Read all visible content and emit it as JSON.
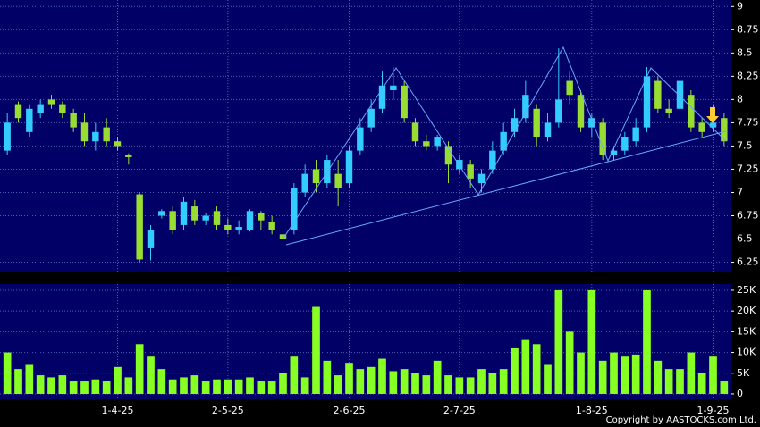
{
  "chart_data": [
    {
      "type": "candlestick",
      "up_color": "#33ccff",
      "down_color": "#99dd33",
      "ylim": [
        6.14,
        9.07
      ],
      "yticks": [
        6.25,
        6.5,
        6.75,
        7,
        7.25,
        7.5,
        7.75,
        8,
        8.25,
        8.5,
        8.75,
        9
      ],
      "grid": true,
      "open": [
        7.45,
        7.95,
        7.65,
        7.85,
        8.0,
        7.95,
        7.85,
        7.75,
        7.55,
        7.7,
        7.55,
        7.4,
        6.98,
        6.4,
        6.75,
        6.8,
        6.65,
        6.85,
        6.7,
        6.8,
        6.65,
        6.6,
        6.6,
        6.78,
        6.68,
        6.55,
        6.6,
        7.0,
        7.25,
        7.1,
        7.2,
        7.1,
        7.45,
        7.7,
        7.9,
        8.1,
        8.15,
        7.75,
        7.55,
        7.5,
        7.5,
        7.25,
        7.3,
        7.1,
        7.25,
        7.45,
        7.65,
        7.8,
        7.9,
        7.6,
        7.75,
        8.2,
        8.05,
        7.7,
        7.75,
        7.4,
        7.45,
        7.55,
        7.7,
        8.2,
        7.9,
        7.9,
        8.05,
        7.75,
        7.7,
        7.8
      ],
      "high": [
        7.85,
        7.98,
        7.95,
        8.0,
        8.05,
        7.98,
        7.9,
        7.85,
        7.75,
        7.8,
        7.6,
        7.42,
        7.0,
        6.65,
        6.82,
        6.85,
        6.95,
        6.92,
        6.78,
        6.85,
        6.72,
        6.7,
        6.82,
        6.8,
        6.75,
        6.6,
        7.1,
        7.3,
        7.35,
        7.4,
        7.35,
        7.5,
        7.8,
        8.0,
        8.3,
        8.35,
        8.2,
        7.8,
        7.62,
        7.62,
        7.55,
        7.4,
        7.35,
        7.25,
        7.55,
        7.75,
        7.9,
        8.2,
        7.95,
        7.85,
        8.55,
        8.3,
        8.1,
        7.85,
        7.8,
        7.5,
        7.65,
        7.8,
        8.35,
        8.25,
        8.0,
        8.25,
        8.1,
        7.8,
        7.95,
        7.85
      ],
      "low": [
        7.4,
        7.75,
        7.6,
        7.8,
        7.9,
        7.8,
        7.65,
        7.5,
        7.45,
        7.5,
        7.45,
        7.3,
        6.25,
        6.27,
        6.72,
        6.55,
        6.6,
        6.65,
        6.65,
        6.6,
        6.55,
        6.55,
        6.58,
        6.6,
        6.55,
        6.45,
        6.55,
        6.95,
        7.0,
        7.05,
        6.85,
        7.05,
        7.4,
        7.65,
        7.85,
        8.0,
        7.75,
        7.5,
        7.45,
        7.45,
        7.1,
        7.2,
        7.05,
        7.0,
        7.2,
        7.4,
        7.6,
        7.75,
        7.5,
        7.55,
        7.7,
        7.95,
        7.65,
        7.6,
        7.35,
        7.35,
        7.4,
        7.5,
        7.65,
        7.85,
        7.8,
        7.85,
        7.65,
        7.6,
        7.65,
        7.5
      ],
      "close": [
        7.75,
        7.8,
        7.9,
        7.95,
        7.95,
        7.85,
        7.7,
        7.55,
        7.65,
        7.55,
        7.5,
        7.38,
        6.28,
        6.6,
        6.8,
        6.6,
        6.9,
        6.7,
        6.75,
        6.65,
        6.6,
        6.63,
        6.8,
        6.7,
        6.6,
        6.5,
        7.05,
        7.2,
        7.1,
        7.35,
        7.05,
        7.45,
        7.7,
        7.9,
        8.15,
        8.15,
        7.8,
        7.55,
        7.5,
        7.6,
        7.3,
        7.35,
        7.15,
        7.2,
        7.45,
        7.65,
        7.8,
        8.05,
        7.6,
        7.75,
        8.0,
        8.05,
        7.7,
        7.8,
        7.4,
        7.45,
        7.6,
        7.7,
        8.25,
        7.9,
        7.85,
        8.2,
        7.7,
        7.65,
        7.75,
        7.55
      ]
    },
    {
      "type": "bar",
      "color": "#88ff22",
      "ylim": [
        -1300,
        26500
      ],
      "yticks": [
        0,
        {
          "value": 5000,
          "label": "5K"
        },
        {
          "value": 10000,
          "label": "10K"
        },
        {
          "value": 15000,
          "label": "15K"
        },
        {
          "value": 20000,
          "label": "20K"
        },
        {
          "value": 25000,
          "label": "25K"
        }
      ],
      "grid": true,
      "categories": [
        null,
        null,
        null,
        null,
        null,
        null,
        null,
        null,
        null,
        null,
        "1-4-25",
        null,
        null,
        null,
        null,
        null,
        null,
        null,
        null,
        null,
        "2-5-25",
        null,
        null,
        null,
        null,
        null,
        null,
        null,
        null,
        null,
        null,
        "2-6-25",
        null,
        null,
        null,
        null,
        null,
        null,
        null,
        null,
        null,
        "2-7-25",
        null,
        null,
        null,
        null,
        null,
        null,
        null,
        null,
        null,
        null,
        null,
        "1-8-25",
        null,
        null,
        null,
        null,
        null,
        null,
        null,
        null,
        null,
        null,
        "1-9-25",
        null
      ],
      "values": [
        10000,
        6000,
        7000,
        4500,
        4000,
        4500,
        3000,
        3000,
        3500,
        3000,
        6500,
        4000,
        12000,
        9000,
        6000,
        3500,
        4000,
        4500,
        3000,
        3500,
        3500,
        3500,
        4000,
        3000,
        3000,
        5000,
        9000,
        4000,
        21000,
        8000,
        4500,
        7500,
        6000,
        6500,
        8500,
        5500,
        6000,
        5000,
        4500,
        8000,
        4500,
        4000,
        4000,
        6000,
        5000,
        6000,
        11000,
        13000,
        12000,
        7000,
        25000,
        15000,
        10000,
        25000,
        8000,
        10000,
        9000,
        9500,
        25000,
        8000,
        6000,
        6000,
        10000,
        5000,
        9000,
        3000
      ]
    }
  ],
  "footer": "Copyright by AASTOCKS.com Ltd."
}
